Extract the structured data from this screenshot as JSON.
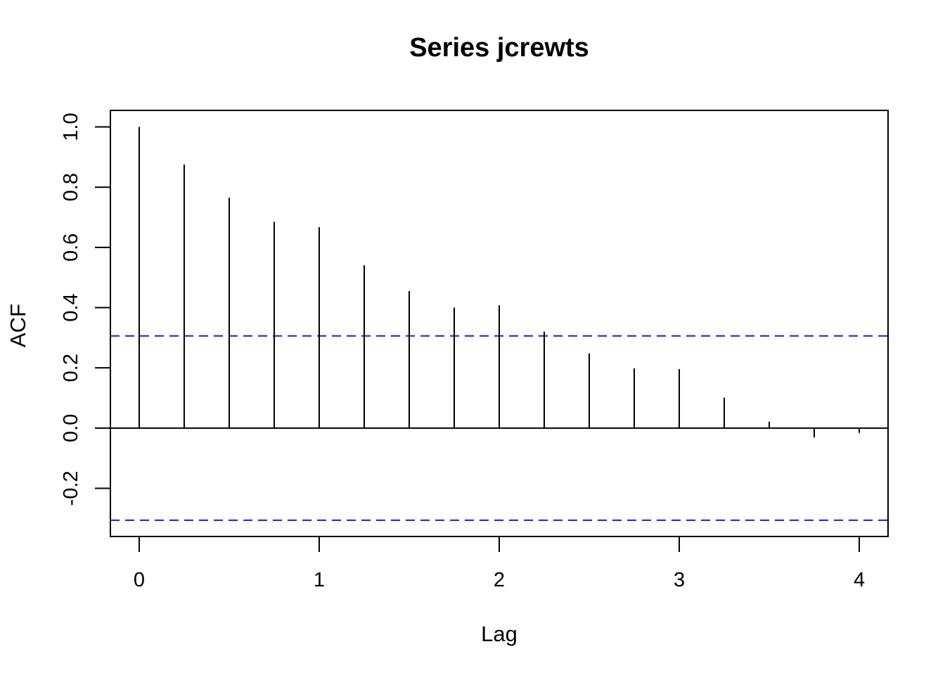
{
  "chart_data": {
    "type": "bar",
    "title": "Series  jcrewts",
    "xlabel": "Lag",
    "ylabel": "ACF",
    "xlim": [
      -0.16,
      4.16
    ],
    "ylim": [
      -0.36,
      1.055
    ],
    "x_ticks": [
      0,
      1,
      2,
      3,
      4
    ],
    "y_ticks": [
      -0.2,
      0.0,
      0.2,
      0.4,
      0.6,
      0.8,
      1.0
    ],
    "y_tick_labels": [
      "-0.2",
      "0.0",
      "0.2",
      "0.4",
      "0.6",
      "0.8",
      "1.0"
    ],
    "lags": [
      0,
      0.25,
      0.5,
      0.75,
      1.0,
      1.25,
      1.5,
      1.75,
      2.0,
      2.25,
      2.5,
      2.75,
      3.0,
      3.25,
      3.5,
      3.75,
      4.0
    ],
    "acf": [
      1.0,
      0.875,
      0.765,
      0.685,
      0.667,
      0.541,
      0.455,
      0.4,
      0.408,
      0.32,
      0.248,
      0.198,
      0.196,
      0.101,
      0.021,
      -0.031,
      -0.016
    ],
    "confidence_bounds": [
      0.306,
      -0.306
    ],
    "colors": {
      "bars": "#000000",
      "bounds": "#1a1ae6",
      "axis": "#000000"
    },
    "grid": false
  }
}
